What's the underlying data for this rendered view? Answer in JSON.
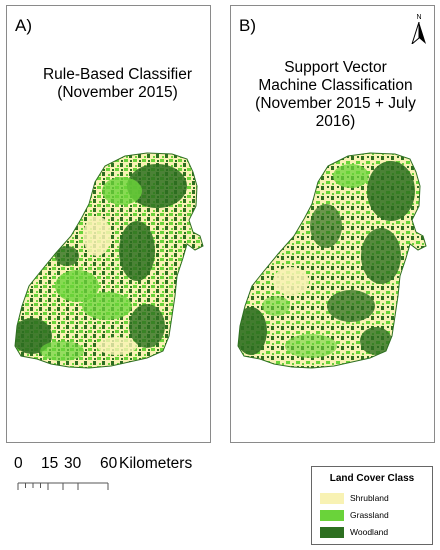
{
  "panels": [
    {
      "letter": "A)",
      "title": "Rule-Based Classifier\n(November 2015)"
    },
    {
      "letter": "B)",
      "title": "Support Vector\nMachine Classification\n(November 2015 + July 2016)"
    }
  ],
  "north_arrow": {
    "letter": "N"
  },
  "scale_bar": {
    "ticks": [
      "0",
      "15",
      "30",
      "60"
    ],
    "unit": "Kilometers"
  },
  "legend": {
    "title": "Land Cover Class",
    "items": [
      {
        "label": "Shrubland",
        "color": "#f8f2b4"
      },
      {
        "label": "Grassland",
        "color": "#6ad33a"
      },
      {
        "label": "Woodland",
        "color": "#2d6f20"
      }
    ]
  },
  "colors": {
    "shrubland": "#f8f2b4",
    "grassland": "#6ad33a",
    "woodland": "#2d6f20"
  }
}
